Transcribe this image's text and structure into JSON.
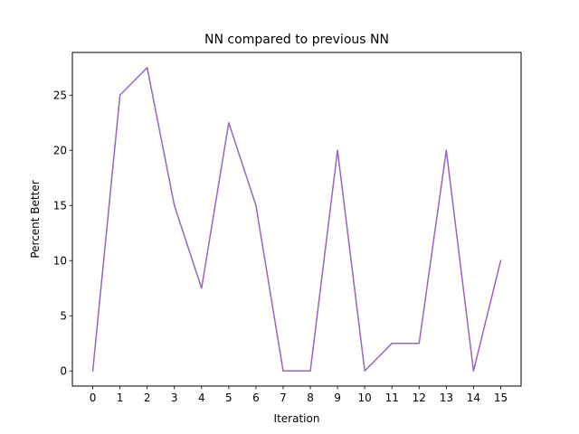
{
  "chart_data": {
    "type": "line",
    "title": "NN compared to previous NN",
    "xlabel": "Iteration",
    "ylabel": "Percent Better",
    "x": [
      0,
      1,
      2,
      3,
      4,
      5,
      6,
      7,
      8,
      9,
      10,
      11,
      12,
      13,
      14,
      15
    ],
    "series": [
      {
        "values": [
          0,
          25,
          27.5,
          15,
          7.5,
          22.5,
          15,
          0,
          0,
          20,
          0,
          2.5,
          2.5,
          20,
          0,
          10
        ],
        "color": "#9467bd"
      }
    ],
    "xlim": [
      -0.75,
      15.75
    ],
    "ylim": [
      -1.375,
      28.875
    ],
    "xticks": [
      0,
      1,
      2,
      3,
      4,
      5,
      6,
      7,
      8,
      9,
      10,
      11,
      12,
      13,
      14,
      15
    ],
    "yticks": [
      0,
      5,
      10,
      15,
      20,
      25
    ],
    "grid": false,
    "legend": "none"
  }
}
